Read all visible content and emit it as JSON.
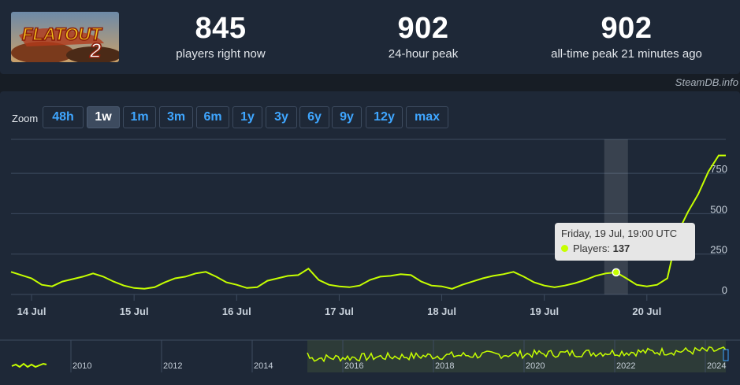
{
  "stats": [
    {
      "value": "845",
      "label": "players right now"
    },
    {
      "value": "902",
      "label": "24-hour peak"
    },
    {
      "value": "902",
      "label": "all-time peak 21 minutes ago"
    }
  ],
  "logo": {
    "text": "FLATOUT",
    "suffix": "2"
  },
  "credit": "SteamDB.info",
  "zoom": {
    "label": "Zoom",
    "buttons": [
      "48h",
      "1w",
      "1m",
      "3m",
      "6m",
      "1y",
      "3y",
      "6y",
      "9y",
      "12y",
      "max"
    ],
    "active": "1w"
  },
  "tooltip": {
    "date": "Friday, 19 Jul, 19:00 UTC",
    "series_label": "Players:",
    "value": "137"
  },
  "colors": {
    "line": "#c6ff00",
    "accent": "#3fa6ff",
    "background": "#1e2837"
  },
  "chart_data": {
    "type": "line",
    "x_labels": [
      "14 Jul",
      "15 Jul",
      "16 Jul",
      "17 Jul",
      "18 Jul",
      "19 Jul",
      "20 Jul"
    ],
    "y_ticks": [
      0,
      250,
      500,
      750
    ],
    "ylim": [
      0,
      960
    ],
    "xlim": [
      -0.2,
      6.77
    ],
    "series": [
      {
        "x": [
          -0.2,
          -0.1,
          0,
          0.1,
          0.2,
          0.3,
          0.4,
          0.5,
          0.6,
          0.7,
          0.8,
          0.9,
          1,
          1.1,
          1.2,
          1.3,
          1.4,
          1.5,
          1.6,
          1.7,
          1.8,
          1.9,
          2,
          2.1,
          2.2,
          2.3,
          2.4,
          2.5,
          2.6,
          2.7,
          2.8,
          2.9,
          3,
          3.1,
          3.2,
          3.3,
          3.4,
          3.5,
          3.6,
          3.7,
          3.8,
          3.9,
          4,
          4.1,
          4.2,
          4.3,
          4.4,
          4.5,
          4.6,
          4.7,
          4.8,
          4.9,
          5,
          5.1,
          5.2,
          5.3,
          5.4,
          5.5,
          5.6,
          5.7,
          5.8,
          5.9,
          6,
          6.1,
          6.2,
          6.3,
          6.4,
          6.5,
          6.6,
          6.7,
          6.77
        ],
        "values": [
          140,
          120,
          100,
          60,
          50,
          80,
          95,
          110,
          130,
          110,
          80,
          55,
          40,
          35,
          45,
          75,
          100,
          110,
          130,
          140,
          110,
          75,
          60,
          40,
          45,
          85,
          100,
          115,
          120,
          160,
          90,
          60,
          50,
          45,
          55,
          90,
          110,
          115,
          125,
          120,
          80,
          55,
          50,
          35,
          60,
          80,
          100,
          115,
          125,
          140,
          110,
          75,
          55,
          45,
          55,
          70,
          90,
          115,
          130,
          137,
          100,
          60,
          50,
          60,
          100,
          380,
          510,
          620,
          760,
          860,
          860
        ]
      }
    ],
    "highlight": {
      "x": 5.7,
      "value": 137
    },
    "navigator_labels": [
      "2010",
      "2012",
      "2014",
      "2016",
      "2018",
      "2020",
      "2022",
      "2024"
    ]
  }
}
